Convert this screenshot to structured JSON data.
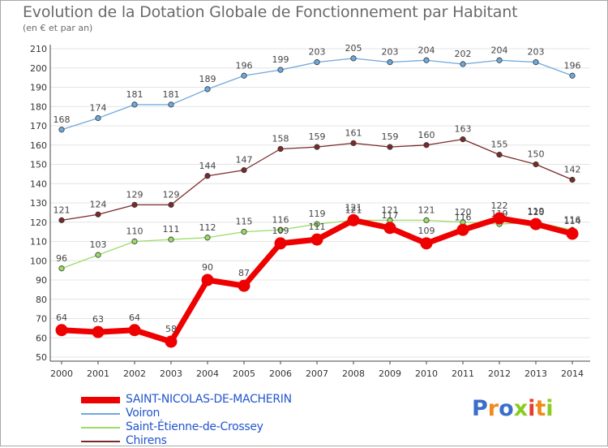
{
  "header": {
    "title": "Evolution de la Dotation Globale de Fonctionnement par Habitant",
    "subtitle": "(en € et par an)"
  },
  "logo": {
    "text": "Proxiti"
  },
  "chart_data": {
    "type": "line",
    "title": "Evolution de la Dotation Globale de Fonctionnement par Habitant",
    "subtitle": "(en € et par an)",
    "xlabel": "",
    "ylabel": "",
    "x": [
      2000,
      2001,
      2002,
      2003,
      2004,
      2005,
      2006,
      2007,
      2008,
      2009,
      2010,
      2011,
      2012,
      2013,
      2014
    ],
    "ylim": [
      50,
      210
    ],
    "yticks": [
      50,
      60,
      70,
      80,
      90,
      100,
      110,
      120,
      130,
      140,
      150,
      160,
      170,
      180,
      190,
      200,
      210
    ],
    "grid": "horizontal",
    "legend_position": "bottom-left",
    "series": [
      {
        "name": "SAINT-NICOLAS-DE-MACHERIN",
        "color": "#ee0000",
        "values": [
          64,
          63,
          64,
          58,
          90,
          87,
          109,
          111,
          121,
          117,
          109,
          116,
          122,
          119,
          114
        ]
      },
      {
        "name": "Voiron",
        "color": "#6fa8dc",
        "values": [
          168,
          174,
          181,
          181,
          189,
          196,
          199,
          203,
          205,
          203,
          204,
          202,
          204,
          203,
          196
        ]
      },
      {
        "name": "Saint-Étienne-de-Crossey",
        "color": "#99dd66",
        "values": [
          96,
          103,
          110,
          111,
          112,
          115,
          116,
          119,
          121,
          121,
          121,
          120,
          119,
          120,
          116
        ]
      },
      {
        "name": "Chirens",
        "color": "#7a2a2a",
        "values": [
          121,
          124,
          129,
          129,
          144,
          147,
          158,
          159,
          161,
          159,
          160,
          163,
          155,
          150,
          142
        ]
      }
    ]
  }
}
